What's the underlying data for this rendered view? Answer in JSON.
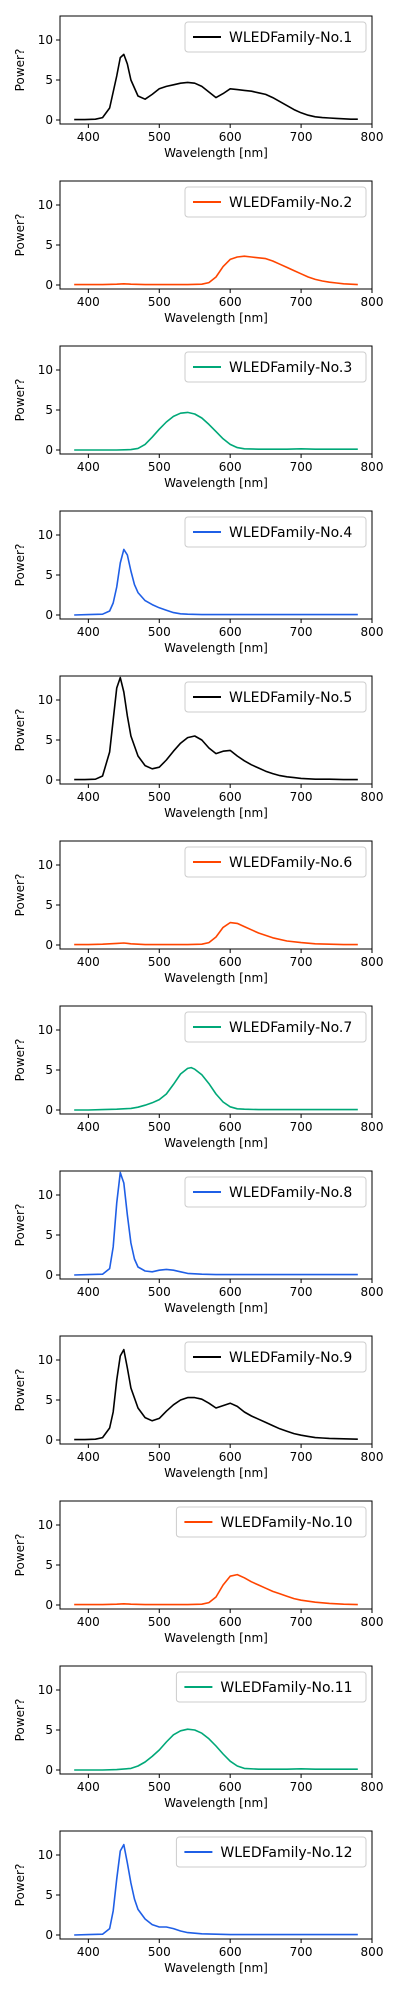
{
  "chart_data": [
    {
      "type": "line",
      "xlabel": "Wavelength [nm]",
      "ylabel": "Power?",
      "xlim": [
        360,
        800
      ],
      "ylim": [
        -0.5,
        13
      ],
      "xticks": [
        400,
        500,
        600,
        700,
        800
      ],
      "yticks": [
        0,
        5,
        10
      ],
      "legend_position": "top-right",
      "series": [
        {
          "name": "WLEDFamily-No.1",
          "color": "#000000",
          "x": [
            380,
            395,
            410,
            420,
            430,
            440,
            445,
            450,
            455,
            460,
            470,
            480,
            490,
            500,
            510,
            520,
            530,
            540,
            550,
            560,
            570,
            580,
            590,
            600,
            610,
            620,
            630,
            640,
            650,
            660,
            670,
            680,
            690,
            700,
            710,
            720,
            730,
            740,
            750,
            760,
            770,
            780
          ],
          "y": [
            0.05,
            0.05,
            0.1,
            0.3,
            1.5,
            5.5,
            7.8,
            8.2,
            7.0,
            5.0,
            3.0,
            2.6,
            3.2,
            3.9,
            4.2,
            4.4,
            4.6,
            4.7,
            4.6,
            4.2,
            3.5,
            2.8,
            3.3,
            3.9,
            3.8,
            3.7,
            3.6,
            3.4,
            3.2,
            2.8,
            2.3,
            1.8,
            1.3,
            0.9,
            0.6,
            0.4,
            0.3,
            0.25,
            0.2,
            0.15,
            0.1,
            0.1
          ]
        }
      ]
    },
    {
      "type": "line",
      "xlabel": "Wavelength [nm]",
      "ylabel": "Power?",
      "xlim": [
        360,
        800
      ],
      "ylim": [
        -0.5,
        13
      ],
      "xticks": [
        400,
        500,
        600,
        700,
        800
      ],
      "yticks": [
        0,
        5,
        10
      ],
      "legend_position": "top-right",
      "series": [
        {
          "name": "WLEDFamily-No.2",
          "color": "#ff4500",
          "x": [
            380,
            400,
            420,
            440,
            450,
            460,
            480,
            500,
            520,
            540,
            560,
            570,
            580,
            590,
            600,
            610,
            620,
            630,
            640,
            650,
            660,
            670,
            680,
            690,
            700,
            710,
            720,
            730,
            740,
            750,
            760,
            770,
            780
          ],
          "y": [
            0.05,
            0.05,
            0.05,
            0.1,
            0.15,
            0.1,
            0.05,
            0.05,
            0.05,
            0.05,
            0.1,
            0.3,
            1.0,
            2.3,
            3.2,
            3.5,
            3.6,
            3.5,
            3.4,
            3.3,
            3.0,
            2.6,
            2.2,
            1.8,
            1.4,
            1.0,
            0.7,
            0.5,
            0.35,
            0.25,
            0.15,
            0.1,
            0.05
          ]
        }
      ]
    },
    {
      "type": "line",
      "xlabel": "Wavelength [nm]",
      "ylabel": "Power?",
      "xlim": [
        360,
        800
      ],
      "ylim": [
        -0.5,
        13
      ],
      "xticks": [
        400,
        500,
        600,
        700,
        800
      ],
      "yticks": [
        0,
        5,
        10
      ],
      "legend_position": "top-right",
      "series": [
        {
          "name": "WLEDFamily-No.3",
          "color": "#00a878",
          "x": [
            380,
            400,
            420,
            440,
            460,
            470,
            480,
            490,
            500,
            510,
            520,
            530,
            540,
            550,
            560,
            570,
            580,
            590,
            600,
            610,
            620,
            640,
            660,
            680,
            700,
            720,
            740,
            760,
            780
          ],
          "y": [
            0.0,
            0.0,
            0.0,
            0.0,
            0.05,
            0.2,
            0.7,
            1.6,
            2.6,
            3.5,
            4.2,
            4.6,
            4.7,
            4.5,
            4.0,
            3.2,
            2.3,
            1.4,
            0.7,
            0.3,
            0.15,
            0.1,
            0.1,
            0.1,
            0.15,
            0.1,
            0.1,
            0.1,
            0.1
          ]
        }
      ]
    },
    {
      "type": "line",
      "xlabel": "Wavelength [nm]",
      "ylabel": "Power?",
      "xlim": [
        360,
        800
      ],
      "ylim": [
        -0.5,
        13
      ],
      "xticks": [
        400,
        500,
        600,
        700,
        800
      ],
      "yticks": [
        0,
        5,
        10
      ],
      "legend_position": "top-right",
      "series": [
        {
          "name": "WLEDFamily-No.4",
          "color": "#1f5fe6",
          "x": [
            380,
            400,
            420,
            430,
            435,
            440,
            445,
            450,
            455,
            460,
            465,
            470,
            480,
            490,
            500,
            510,
            520,
            530,
            540,
            560,
            580,
            600,
            650,
            700,
            750,
            780
          ],
          "y": [
            0.0,
            0.05,
            0.1,
            0.5,
            1.5,
            3.5,
            6.5,
            8.2,
            7.5,
            5.5,
            3.8,
            2.8,
            1.8,
            1.3,
            0.9,
            0.6,
            0.3,
            0.15,
            0.1,
            0.05,
            0.05,
            0.05,
            0.05,
            0.05,
            0.05,
            0.05
          ]
        }
      ]
    },
    {
      "type": "line",
      "xlabel": "Wavelength [nm]",
      "ylabel": "Power?",
      "xlim": [
        360,
        800
      ],
      "ylim": [
        -0.5,
        13
      ],
      "xticks": [
        400,
        500,
        600,
        700,
        800
      ],
      "yticks": [
        0,
        5,
        10
      ],
      "legend_position": "top-right",
      "series": [
        {
          "name": "WLEDFamily-No.5",
          "color": "#000000",
          "x": [
            380,
            395,
            410,
            420,
            430,
            435,
            440,
            445,
            450,
            455,
            460,
            470,
            480,
            490,
            500,
            510,
            520,
            530,
            540,
            550,
            560,
            570,
            580,
            590,
            600,
            610,
            620,
            630,
            640,
            650,
            660,
            670,
            680,
            690,
            700,
            710,
            720,
            730,
            740,
            760,
            780
          ],
          "y": [
            0.05,
            0.05,
            0.1,
            0.5,
            3.5,
            7.5,
            11.5,
            12.8,
            11.0,
            8.0,
            5.5,
            3.0,
            1.8,
            1.4,
            1.6,
            2.5,
            3.6,
            4.6,
            5.3,
            5.5,
            5.0,
            4.0,
            3.3,
            3.6,
            3.7,
            3.0,
            2.4,
            1.9,
            1.5,
            1.1,
            0.8,
            0.55,
            0.4,
            0.3,
            0.2,
            0.15,
            0.1,
            0.1,
            0.1,
            0.05,
            0.05
          ]
        }
      ]
    },
    {
      "type": "line",
      "xlabel": "Wavelength [nm]",
      "ylabel": "Power?",
      "xlim": [
        360,
        800
      ],
      "ylim": [
        -0.5,
        13
      ],
      "xticks": [
        400,
        500,
        600,
        700,
        800
      ],
      "yticks": [
        0,
        5,
        10
      ],
      "legend_position": "top-right",
      "series": [
        {
          "name": "WLEDFamily-No.6",
          "color": "#ff4500",
          "x": [
            380,
            400,
            420,
            440,
            450,
            460,
            480,
            500,
            520,
            540,
            560,
            570,
            580,
            590,
            600,
            610,
            620,
            630,
            640,
            650,
            660,
            680,
            700,
            720,
            740,
            760,
            780
          ],
          "y": [
            0.05,
            0.05,
            0.1,
            0.2,
            0.25,
            0.15,
            0.05,
            0.05,
            0.05,
            0.05,
            0.1,
            0.3,
            1.0,
            2.2,
            2.8,
            2.7,
            2.3,
            1.9,
            1.5,
            1.2,
            0.9,
            0.5,
            0.3,
            0.15,
            0.1,
            0.05,
            0.05
          ]
        }
      ]
    },
    {
      "type": "line",
      "xlabel": "Wavelength [nm]",
      "ylabel": "Power?",
      "xlim": [
        360,
        800
      ],
      "ylim": [
        -0.5,
        13
      ],
      "xticks": [
        400,
        500,
        600,
        700,
        800
      ],
      "yticks": [
        0,
        5,
        10
      ],
      "legend_position": "top-right",
      "series": [
        {
          "name": "WLEDFamily-No.7",
          "color": "#00a878",
          "x": [
            380,
            400,
            420,
            440,
            460,
            470,
            480,
            490,
            500,
            510,
            520,
            530,
            540,
            545,
            550,
            560,
            570,
            580,
            590,
            600,
            610,
            620,
            640,
            660,
            680,
            700,
            720,
            740,
            760,
            780
          ],
          "y": [
            0.0,
            0.0,
            0.05,
            0.1,
            0.2,
            0.35,
            0.6,
            0.9,
            1.3,
            2.0,
            3.2,
            4.5,
            5.2,
            5.3,
            5.1,
            4.4,
            3.3,
            2.0,
            1.0,
            0.4,
            0.15,
            0.1,
            0.05,
            0.05,
            0.05,
            0.05,
            0.05,
            0.05,
            0.05,
            0.05
          ]
        }
      ]
    },
    {
      "type": "line",
      "xlabel": "Wavelength [nm]",
      "ylabel": "Power?",
      "xlim": [
        360,
        800
      ],
      "ylim": [
        -0.5,
        13
      ],
      "xticks": [
        400,
        500,
        600,
        700,
        800
      ],
      "yticks": [
        0,
        5,
        10
      ],
      "legend_position": "top-right",
      "series": [
        {
          "name": "WLEDFamily-No.8",
          "color": "#1f5fe6",
          "x": [
            380,
            400,
            420,
            430,
            435,
            440,
            445,
            450,
            455,
            460,
            465,
            470,
            480,
            490,
            500,
            510,
            520,
            530,
            540,
            560,
            580,
            600,
            650,
            700,
            750,
            780
          ],
          "y": [
            0.0,
            0.05,
            0.1,
            0.8,
            3.5,
            9.0,
            12.8,
            11.5,
            7.5,
            4.0,
            2.0,
            1.0,
            0.5,
            0.4,
            0.6,
            0.7,
            0.6,
            0.4,
            0.2,
            0.1,
            0.05,
            0.05,
            0.05,
            0.05,
            0.05,
            0.05
          ]
        }
      ]
    },
    {
      "type": "line",
      "xlabel": "Wavelength [nm]",
      "ylabel": "Power?",
      "xlim": [
        360,
        800
      ],
      "ylim": [
        -0.5,
        13
      ],
      "xticks": [
        400,
        500,
        600,
        700,
        800
      ],
      "yticks": [
        0,
        5,
        10
      ],
      "legend_position": "top-right",
      "series": [
        {
          "name": "WLEDFamily-No.9",
          "color": "#000000",
          "x": [
            380,
            395,
            410,
            420,
            430,
            435,
            440,
            445,
            450,
            455,
            460,
            470,
            480,
            490,
            500,
            510,
            520,
            530,
            540,
            550,
            560,
            570,
            580,
            590,
            600,
            610,
            620,
            630,
            640,
            650,
            660,
            670,
            680,
            690,
            700,
            710,
            720,
            730,
            740,
            760,
            780
          ],
          "y": [
            0.05,
            0.05,
            0.1,
            0.3,
            1.5,
            3.5,
            7.5,
            10.5,
            11.3,
            9.0,
            6.5,
            4.0,
            2.8,
            2.4,
            2.7,
            3.6,
            4.4,
            5.0,
            5.3,
            5.3,
            5.1,
            4.6,
            4.0,
            4.3,
            4.6,
            4.2,
            3.5,
            3.0,
            2.6,
            2.2,
            1.8,
            1.4,
            1.1,
            0.8,
            0.6,
            0.45,
            0.3,
            0.25,
            0.2,
            0.15,
            0.1
          ]
        }
      ]
    },
    {
      "type": "line",
      "xlabel": "Wavelength [nm]",
      "ylabel": "Power?",
      "xlim": [
        360,
        800
      ],
      "ylim": [
        -0.5,
        13
      ],
      "xticks": [
        400,
        500,
        600,
        700,
        800
      ],
      "yticks": [
        0,
        5,
        10
      ],
      "legend_position": "top-right",
      "series": [
        {
          "name": "WLEDFamily-No.10",
          "color": "#ff4500",
          "x": [
            380,
            400,
            420,
            440,
            450,
            460,
            480,
            500,
            520,
            540,
            560,
            570,
            580,
            590,
            600,
            610,
            620,
            630,
            640,
            650,
            660,
            670,
            680,
            690,
            700,
            720,
            740,
            760,
            780
          ],
          "y": [
            0.05,
            0.05,
            0.05,
            0.1,
            0.15,
            0.1,
            0.05,
            0.05,
            0.05,
            0.05,
            0.1,
            0.3,
            1.0,
            2.5,
            3.6,
            3.8,
            3.4,
            2.9,
            2.5,
            2.1,
            1.7,
            1.4,
            1.1,
            0.8,
            0.6,
            0.35,
            0.2,
            0.1,
            0.05
          ]
        }
      ]
    },
    {
      "type": "line",
      "xlabel": "Wavelength [nm]",
      "ylabel": "Power?",
      "xlim": [
        360,
        800
      ],
      "ylim": [
        -0.5,
        13
      ],
      "xticks": [
        400,
        500,
        600,
        700,
        800
      ],
      "yticks": [
        0,
        5,
        10
      ],
      "legend_position": "top-right",
      "series": [
        {
          "name": "WLEDFamily-No.11",
          "color": "#00a878",
          "x": [
            380,
            400,
            420,
            440,
            460,
            470,
            480,
            490,
            500,
            510,
            520,
            530,
            540,
            550,
            560,
            570,
            580,
            590,
            600,
            610,
            620,
            640,
            660,
            680,
            700,
            720,
            740,
            760,
            780
          ],
          "y": [
            0.0,
            0.0,
            0.0,
            0.05,
            0.2,
            0.5,
            1.0,
            1.7,
            2.5,
            3.5,
            4.4,
            4.9,
            5.1,
            5.0,
            4.6,
            3.9,
            3.0,
            2.0,
            1.1,
            0.5,
            0.2,
            0.1,
            0.1,
            0.1,
            0.15,
            0.1,
            0.1,
            0.1,
            0.1
          ]
        }
      ]
    },
    {
      "type": "line",
      "xlabel": "Wavelength [nm]",
      "ylabel": "Power?",
      "xlim": [
        360,
        800
      ],
      "ylim": [
        -0.5,
        13
      ],
      "xticks": [
        400,
        500,
        600,
        700,
        800
      ],
      "yticks": [
        0,
        5,
        10
      ],
      "legend_position": "top-right",
      "series": [
        {
          "name": "WLEDFamily-No.12",
          "color": "#1f5fe6",
          "x": [
            380,
            400,
            420,
            430,
            435,
            440,
            445,
            450,
            455,
            460,
            465,
            470,
            480,
            490,
            500,
            510,
            520,
            530,
            540,
            560,
            580,
            600,
            650,
            700,
            750,
            780
          ],
          "y": [
            0.0,
            0.05,
            0.1,
            0.8,
            3.0,
            7.0,
            10.5,
            11.3,
            9.0,
            6.5,
            4.5,
            3.2,
            2.0,
            1.3,
            1.0,
            1.0,
            0.8,
            0.5,
            0.3,
            0.15,
            0.1,
            0.05,
            0.05,
            0.05,
            0.05,
            0.05
          ]
        }
      ]
    }
  ]
}
